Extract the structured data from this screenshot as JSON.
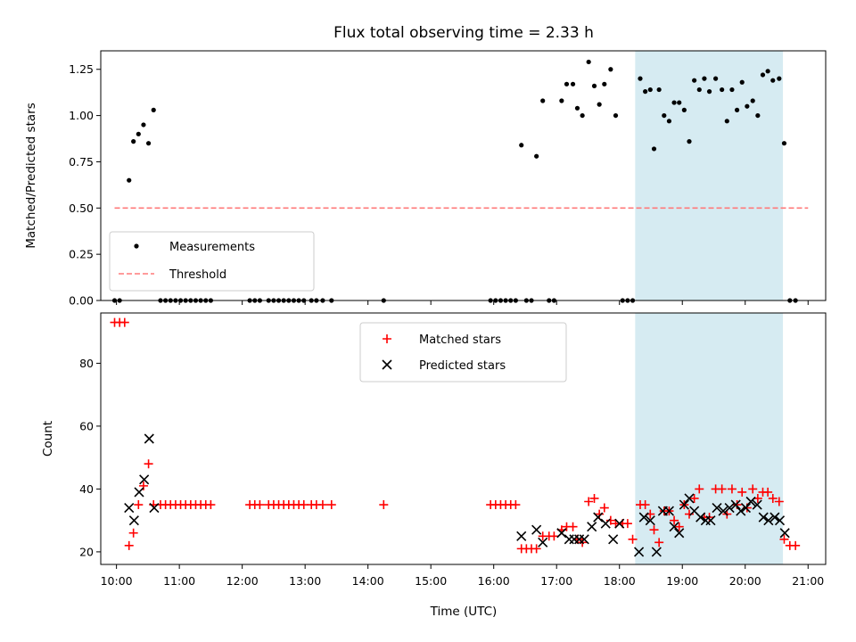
{
  "colors": {
    "measurement": "#000000",
    "threshold": "#ff7a7a",
    "matched": "#ff0000",
    "predicted": "#000000",
    "highlight": "#add8e6",
    "legend_border": "#cccccc"
  },
  "chart_data": [
    {
      "type": "scatter",
      "title": "Flux total observing time = 2.33 h",
      "xlabel": "",
      "ylabel": "Matched/Predicted stars",
      "xlim": [
        9.75,
        21.28
      ],
      "ylim": [
        0.0,
        1.35
      ],
      "yticks": [
        0.0,
        0.25,
        0.5,
        0.75,
        1.0,
        1.25
      ],
      "ytick_labels": [
        "0.00",
        "0.25",
        "0.50",
        "0.75",
        "1.00",
        "1.25"
      ],
      "xticks": [
        10,
        11,
        12,
        13,
        14,
        15,
        16,
        17,
        18,
        19,
        20,
        21
      ],
      "highlight_span": [
        18.25,
        20.6
      ],
      "legend": {
        "placement": "lower-left",
        "entries": [
          "Measurements",
          "Threshold"
        ]
      },
      "threshold": {
        "name": "Threshold",
        "y": 0.5,
        "x": [
          9.97,
          21.0
        ]
      },
      "series": [
        {
          "name": "Measurements",
          "points": [
            [
              9.97,
              0.0
            ],
            [
              10.05,
              0.0
            ],
            [
              10.2,
              0.65
            ],
            [
              10.27,
              0.86
            ],
            [
              10.35,
              0.9
            ],
            [
              10.43,
              0.95
            ],
            [
              10.51,
              0.85
            ],
            [
              10.59,
              1.03
            ],
            [
              10.7,
              0.0
            ],
            [
              10.78,
              0.0
            ],
            [
              10.86,
              0.0
            ],
            [
              10.94,
              0.0
            ],
            [
              11.02,
              0.0
            ],
            [
              11.1,
              0.0
            ],
            [
              11.18,
              0.0
            ],
            [
              11.26,
              0.0
            ],
            [
              11.34,
              0.0
            ],
            [
              11.42,
              0.0
            ],
            [
              11.5,
              0.0
            ],
            [
              12.12,
              0.0
            ],
            [
              12.2,
              0.0
            ],
            [
              12.28,
              0.0
            ],
            [
              12.42,
              0.0
            ],
            [
              12.5,
              0.0
            ],
            [
              12.58,
              0.0
            ],
            [
              12.66,
              0.0
            ],
            [
              12.74,
              0.0
            ],
            [
              12.82,
              0.0
            ],
            [
              12.9,
              0.0
            ],
            [
              12.98,
              0.0
            ],
            [
              13.1,
              0.0
            ],
            [
              13.18,
              0.0
            ],
            [
              13.28,
              0.0
            ],
            [
              13.42,
              0.0
            ],
            [
              14.25,
              0.0
            ],
            [
              15.95,
              0.0
            ],
            [
              16.03,
              0.0
            ],
            [
              16.11,
              0.0
            ],
            [
              16.19,
              0.0
            ],
            [
              16.27,
              0.0
            ],
            [
              16.35,
              0.0
            ],
            [
              16.44,
              0.84
            ],
            [
              16.52,
              0.0
            ],
            [
              16.6,
              0.0
            ],
            [
              16.68,
              0.78
            ],
            [
              16.78,
              1.08
            ],
            [
              16.88,
              0.0
            ],
            [
              16.96,
              0.0
            ],
            [
              17.08,
              1.08
            ],
            [
              17.16,
              1.17
            ],
            [
              17.26,
              1.17
            ],
            [
              17.33,
              1.04
            ],
            [
              17.41,
              1.0
            ],
            [
              17.51,
              1.29
            ],
            [
              17.6,
              1.16
            ],
            [
              17.68,
              1.06
            ],
            [
              17.76,
              1.17
            ],
            [
              17.86,
              1.25
            ],
            [
              17.94,
              1.0
            ],
            [
              18.05,
              0.0
            ],
            [
              18.13,
              0.0
            ],
            [
              18.21,
              0.0
            ],
            [
              18.33,
              1.2
            ],
            [
              18.41,
              1.13
            ],
            [
              18.49,
              1.14
            ],
            [
              18.55,
              0.82
            ],
            [
              18.63,
              1.14
            ],
            [
              18.71,
              1.0
            ],
            [
              18.79,
              0.97
            ],
            [
              18.87,
              1.07
            ],
            [
              18.95,
              1.07
            ],
            [
              19.03,
              1.03
            ],
            [
              19.11,
              0.86
            ],
            [
              19.19,
              1.19
            ],
            [
              19.27,
              1.14
            ],
            [
              19.35,
              1.2
            ],
            [
              19.43,
              1.13
            ],
            [
              19.53,
              1.2
            ],
            [
              19.63,
              1.14
            ],
            [
              19.71,
              0.97
            ],
            [
              19.79,
              1.14
            ],
            [
              19.87,
              1.03
            ],
            [
              19.95,
              1.18
            ],
            [
              20.03,
              1.05
            ],
            [
              20.12,
              1.08
            ],
            [
              20.2,
              1.0
            ],
            [
              20.28,
              1.22
            ],
            [
              20.36,
              1.24
            ],
            [
              20.44,
              1.19
            ],
            [
              20.54,
              1.2
            ],
            [
              20.62,
              0.85
            ],
            [
              20.71,
              0.0
            ],
            [
              20.8,
              0.0
            ]
          ]
        }
      ]
    },
    {
      "type": "scatter",
      "title": "",
      "xlabel": "Time (UTC)",
      "ylabel": "Count",
      "xlim": [
        9.75,
        21.28
      ],
      "ylim": [
        16.0,
        96.0
      ],
      "yticks": [
        20,
        40,
        60,
        80
      ],
      "ytick_labels": [
        "20",
        "40",
        "60",
        "80"
      ],
      "xticks": [
        10,
        11,
        12,
        13,
        14,
        15,
        16,
        17,
        18,
        19,
        20,
        21
      ],
      "xtick_labels": [
        "10:00",
        "11:00",
        "12:00",
        "13:00",
        "14:00",
        "15:00",
        "16:00",
        "17:00",
        "18:00",
        "19:00",
        "20:00",
        "21:00"
      ],
      "highlight_span": [
        18.25,
        20.6
      ],
      "legend": {
        "placement": "upper-center",
        "entries": [
          "Matched stars",
          "Predicted stars"
        ]
      },
      "series": [
        {
          "name": "Matched stars",
          "marker": "plus",
          "points": [
            [
              9.97,
              93
            ],
            [
              10.05,
              93
            ],
            [
              10.13,
              93
            ],
            [
              10.2,
              22
            ],
            [
              10.27,
              26
            ],
            [
              10.35,
              35
            ],
            [
              10.43,
              41
            ],
            [
              10.51,
              48
            ],
            [
              10.59,
              35
            ],
            [
              10.7,
              35
            ],
            [
              10.78,
              35
            ],
            [
              10.86,
              35
            ],
            [
              10.94,
              35
            ],
            [
              11.02,
              35
            ],
            [
              11.1,
              35
            ],
            [
              11.18,
              35
            ],
            [
              11.26,
              35
            ],
            [
              11.34,
              35
            ],
            [
              11.42,
              35
            ],
            [
              11.5,
              35
            ],
            [
              12.12,
              35
            ],
            [
              12.2,
              35
            ],
            [
              12.28,
              35
            ],
            [
              12.42,
              35
            ],
            [
              12.5,
              35
            ],
            [
              12.58,
              35
            ],
            [
              12.66,
              35
            ],
            [
              12.74,
              35
            ],
            [
              12.82,
              35
            ],
            [
              12.9,
              35
            ],
            [
              12.98,
              35
            ],
            [
              13.1,
              35
            ],
            [
              13.18,
              35
            ],
            [
              13.28,
              35
            ],
            [
              13.42,
              35
            ],
            [
              14.25,
              35
            ],
            [
              15.95,
              35
            ],
            [
              16.03,
              35
            ],
            [
              16.11,
              35
            ],
            [
              16.19,
              35
            ],
            [
              16.27,
              35
            ],
            [
              16.35,
              35
            ],
            [
              16.44,
              21
            ],
            [
              16.52,
              21
            ],
            [
              16.6,
              21
            ],
            [
              16.68,
              21
            ],
            [
              16.78,
              25
            ],
            [
              16.88,
              25
            ],
            [
              16.96,
              25
            ],
            [
              17.08,
              27
            ],
            [
              17.16,
              28
            ],
            [
              17.26,
              28
            ],
            [
              17.33,
              24
            ],
            [
              17.41,
              23
            ],
            [
              17.51,
              36
            ],
            [
              17.6,
              37
            ],
            [
              17.68,
              32
            ],
            [
              17.76,
              34
            ],
            [
              17.86,
              30
            ],
            [
              17.94,
              29
            ],
            [
              18.05,
              29
            ],
            [
              18.13,
              29
            ],
            [
              18.21,
              24
            ],
            [
              18.33,
              35
            ],
            [
              18.41,
              35
            ],
            [
              18.49,
              32
            ],
            [
              18.55,
              27
            ],
            [
              18.63,
              23
            ],
            [
              18.71,
              33
            ],
            [
              18.79,
              33
            ],
            [
              18.87,
              30
            ],
            [
              18.95,
              28
            ],
            [
              19.03,
              35
            ],
            [
              19.11,
              32
            ],
            [
              19.19,
              37
            ],
            [
              19.27,
              40
            ],
            [
              19.35,
              31
            ],
            [
              19.43,
              31
            ],
            [
              19.53,
              40
            ],
            [
              19.63,
              40
            ],
            [
              19.71,
              32
            ],
            [
              19.79,
              40
            ],
            [
              19.87,
              35
            ],
            [
              19.95,
              39
            ],
            [
              20.03,
              34
            ],
            [
              20.12,
              40
            ],
            [
              20.2,
              37
            ],
            [
              20.28,
              39
            ],
            [
              20.36,
              39
            ],
            [
              20.44,
              37
            ],
            [
              20.54,
              36
            ],
            [
              20.62,
              24
            ],
            [
              20.71,
              22
            ],
            [
              20.8,
              22
            ]
          ]
        },
        {
          "name": "Predicted stars",
          "marker": "x",
          "points": [
            [
              10.2,
              34
            ],
            [
              10.28,
              30
            ],
            [
              10.36,
              39
            ],
            [
              10.44,
              43
            ],
            [
              10.52,
              56
            ],
            [
              10.6,
              34
            ],
            [
              16.44,
              25
            ],
            [
              16.68,
              27
            ],
            [
              16.78,
              23
            ],
            [
              17.08,
              26
            ],
            [
              17.2,
              24
            ],
            [
              17.28,
              24
            ],
            [
              17.36,
              24
            ],
            [
              17.44,
              24
            ],
            [
              17.56,
              28
            ],
            [
              17.66,
              31
            ],
            [
              17.78,
              29
            ],
            [
              17.9,
              24
            ],
            [
              18.0,
              29
            ],
            [
              18.31,
              20
            ],
            [
              18.39,
              31
            ],
            [
              18.49,
              30
            ],
            [
              18.59,
              20
            ],
            [
              18.69,
              33
            ],
            [
              18.79,
              33
            ],
            [
              18.87,
              28
            ],
            [
              18.95,
              26
            ],
            [
              19.03,
              35
            ],
            [
              19.11,
              37
            ],
            [
              19.19,
              33
            ],
            [
              19.29,
              31
            ],
            [
              19.37,
              30
            ],
            [
              19.45,
              30
            ],
            [
              19.55,
              34
            ],
            [
              19.65,
              33
            ],
            [
              19.75,
              34
            ],
            [
              19.85,
              35
            ],
            [
              19.93,
              33
            ],
            [
              20.01,
              34
            ],
            [
              20.09,
              36
            ],
            [
              20.19,
              35
            ],
            [
              20.29,
              31
            ],
            [
              20.37,
              30
            ],
            [
              20.47,
              31
            ],
            [
              20.55,
              30
            ],
            [
              20.63,
              26
            ]
          ]
        }
      ]
    }
  ]
}
